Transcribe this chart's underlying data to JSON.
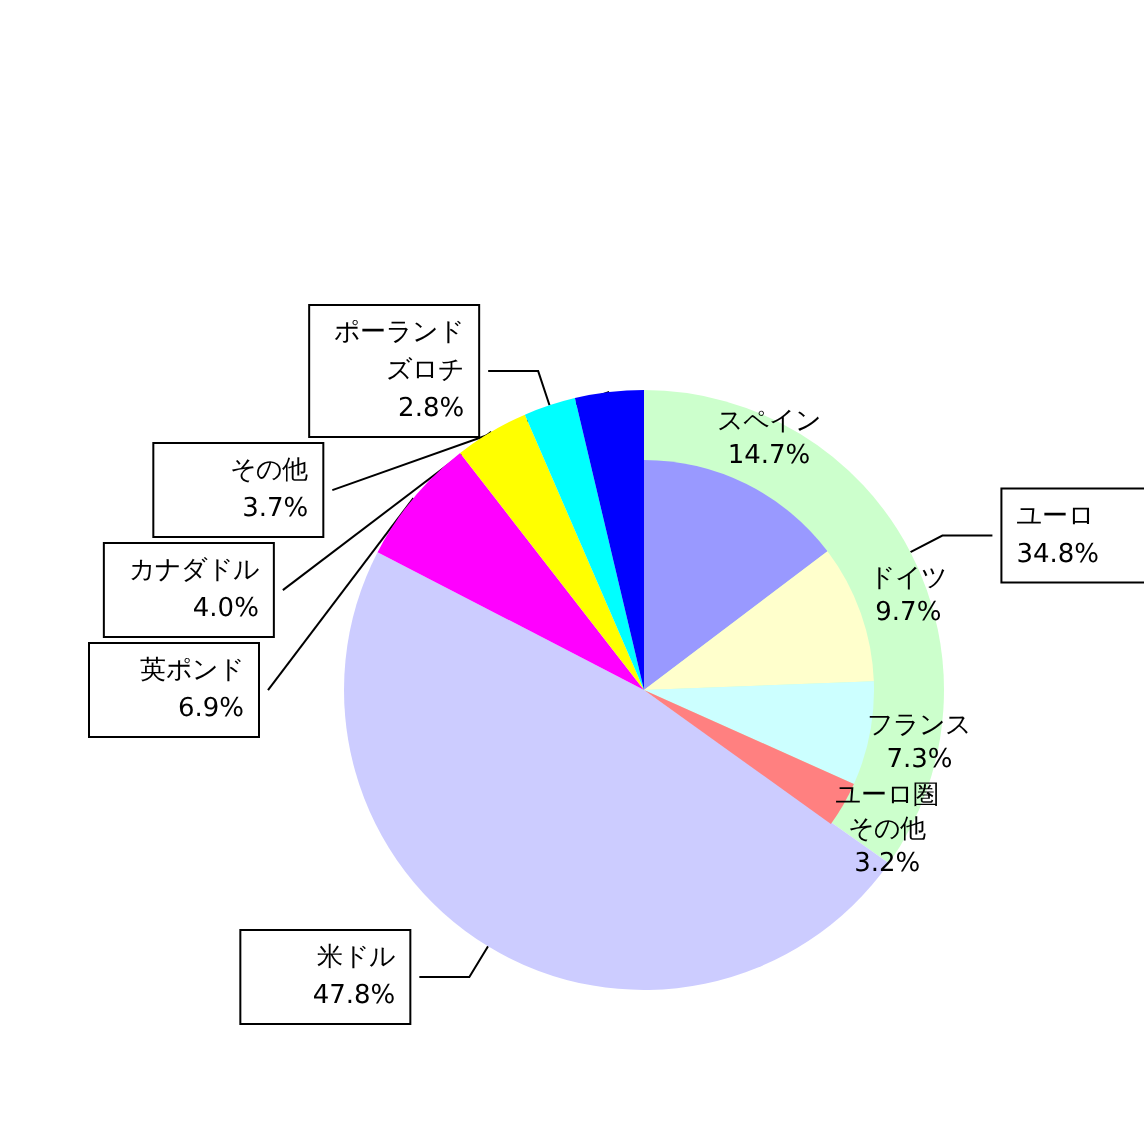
{
  "chart_data": [
    {
      "type": "pie",
      "categories": [
        "ユーロ",
        "米ドル",
        "英ポンド",
        "カナダドル",
        "ポーランドズロチ",
        "その他"
      ],
      "values": [
        34.8,
        47.8,
        6.9,
        4.0,
        2.8,
        3.7
      ],
      "value_labels": [
        "34.8%",
        "47.8%",
        "6.9%",
        "4.0%",
        "2.8%",
        "3.7%"
      ],
      "colors": [
        "#ccffcc",
        "#ccccff",
        "#ff00ff",
        "#ffff00",
        "#00ffff",
        "#0000ff"
      ]
    },
    {
      "type": "pie",
      "categories": [
        "スペイン",
        "ドイツ",
        "フランス",
        "ユーロ圏その他"
      ],
      "values": [
        14.7,
        9.7,
        7.3,
        3.2
      ],
      "value_labels": [
        "14.7%",
        "9.7%",
        "7.3%",
        "3.2%"
      ],
      "colors": [
        "#9999ff",
        "#ffffcc",
        "#ccffff",
        "#ff8080"
      ]
    }
  ]
}
